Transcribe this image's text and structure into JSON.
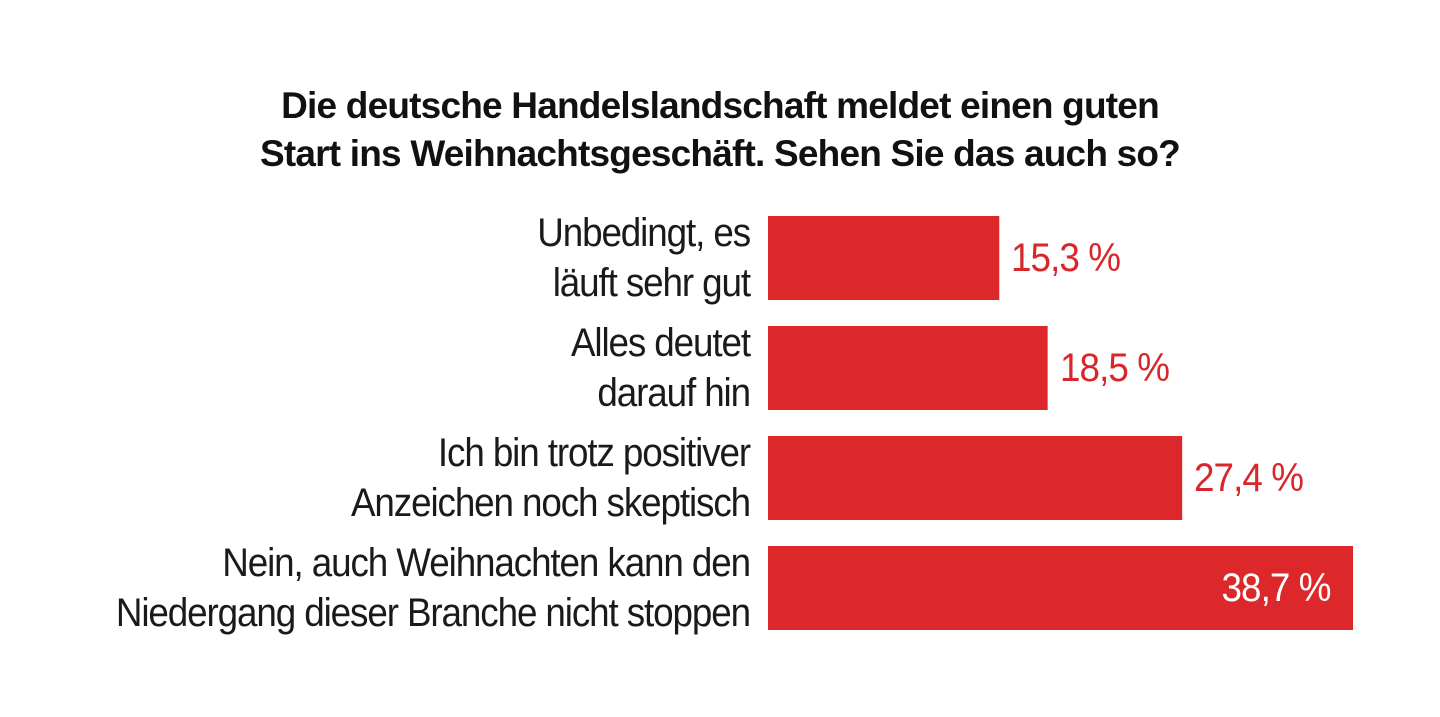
{
  "chart_data": {
    "type": "bar",
    "orientation": "horizontal",
    "title_lines": [
      "Die deutsche Handelslandschaft meldet einen guten",
      "Start ins Weihnachtsgeschäft. Sehen Sie das auch so?"
    ],
    "categories": [
      [
        "Unbedingt, es",
        "läuft sehr gut"
      ],
      [
        "Alles deutet",
        "darauf hin"
      ],
      [
        "Ich bin trotz positiver",
        "Anzeichen noch skeptisch"
      ],
      [
        "Nein, auch Weihnachten kann den",
        "Niedergang dieser Branche nicht stoppen"
      ]
    ],
    "values": [
      15.3,
      18.5,
      27.4,
      38.7
    ],
    "value_labels": [
      "15,3 %",
      "18,5 %",
      "27,4 %",
      "38,7 %"
    ],
    "xlim": [
      0,
      38.7
    ],
    "grid": false,
    "legend": "none",
    "colors": {
      "bar": "#dc282a",
      "value_text": "#d8262a",
      "value_text_inside": "#ffffff",
      "label_text": "#1a1a1a",
      "title_text": "#111111",
      "background": "#ffffff"
    }
  }
}
